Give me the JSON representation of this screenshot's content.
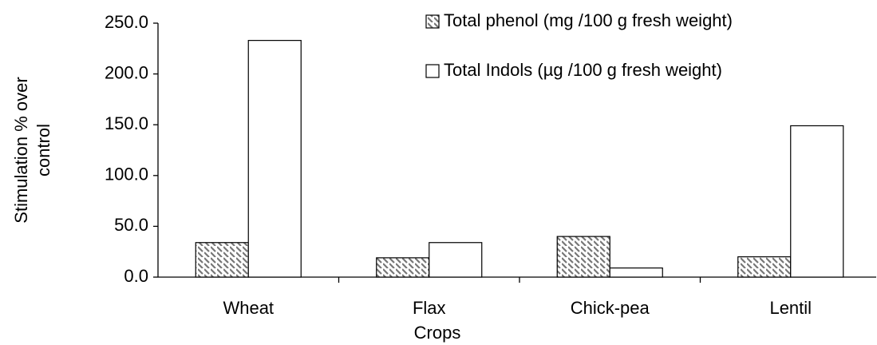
{
  "chart_data": {
    "type": "bar",
    "xlabel": "Crops",
    "ylabel": [
      "Stimulation % over",
      "control"
    ],
    "categories": [
      "Wheat",
      "Flax",
      "Chick-pea",
      "Lentil"
    ],
    "series": [
      {
        "name": "Total phenol (mg /100 g fresh weight)",
        "color": "hatched",
        "values": [
          34,
          19,
          40,
          20
        ]
      },
      {
        "name": "Total Indols (µg /100 g fresh weight)",
        "color": "#ffffff",
        "values": [
          233,
          34,
          9,
          149
        ]
      }
    ],
    "ylim": [
      0,
      250
    ],
    "yticks": [
      {
        "value": 0,
        "label": "0.0"
      },
      {
        "value": 50,
        "label": "50.0"
      },
      {
        "value": 100,
        "label": "100.0"
      },
      {
        "value": 150,
        "label": "150.0"
      },
      {
        "value": 200,
        "label": "200.0"
      },
      {
        "value": 250,
        "label": "250.0"
      }
    ],
    "grid": false
  }
}
